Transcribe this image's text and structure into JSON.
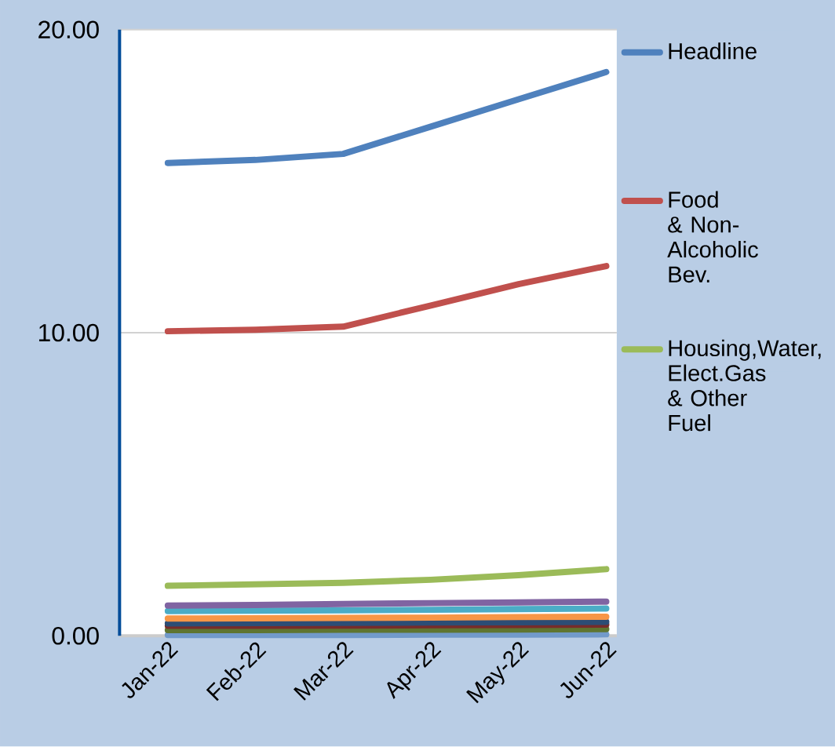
{
  "chart_data": {
    "type": "line",
    "categories": [
      "Jan-22",
      "Feb-22",
      "Mar-22",
      "Apr-22",
      "May-22",
      "Jun-22"
    ],
    "ylim": [
      0,
      20
    ],
    "yticks": [
      {
        "value": 0,
        "label": "0.00"
      },
      {
        "value": 10,
        "label": "10.00"
      },
      {
        "value": 20,
        "label": "20.00"
      }
    ],
    "grid": "y",
    "legend": "right",
    "marker": "none",
    "line_style": "solid",
    "series": [
      {
        "name": "Headline",
        "color": "#4f81bd",
        "values": [
          15.6,
          15.7,
          15.9,
          16.8,
          17.7,
          18.6
        ]
      },
      {
        "name": "Food & Non-Alcoholic Bev.",
        "color": "#c0504d",
        "values": [
          10.05,
          10.1,
          10.2,
          10.9,
          11.6,
          12.2
        ]
      },
      {
        "name": "Housing,Water, Elect.Gas & Other Fuel",
        "color": "#9bbb59",
        "values": [
          1.65,
          1.7,
          1.75,
          1.85,
          2.0,
          2.2
        ]
      },
      {
        "color": "#8064a2",
        "values": [
          1.0,
          1.02,
          1.05,
          1.08,
          1.1,
          1.13
        ]
      },
      {
        "color": "#4bacc6",
        "values": [
          0.82,
          0.83,
          0.84,
          0.86,
          0.88,
          0.9
        ]
      },
      {
        "color": "#f79646",
        "values": [
          0.57,
          0.58,
          0.59,
          0.6,
          0.62,
          0.63
        ]
      },
      {
        "color": "#2c4d75",
        "values": [
          0.41,
          0.42,
          0.43,
          0.44,
          0.45,
          0.46
        ]
      },
      {
        "color": "#772c2a",
        "values": [
          0.33,
          0.33,
          0.34,
          0.35,
          0.36,
          0.37
        ]
      },
      {
        "color": "#5f7530",
        "values": [
          0.19,
          0.19,
          0.2,
          0.2,
          0.21,
          0.22
        ]
      },
      {
        "color": "#729aca",
        "values": [
          0.03,
          0.03,
          0.03,
          0.04,
          0.04,
          0.05
        ]
      }
    ]
  }
}
